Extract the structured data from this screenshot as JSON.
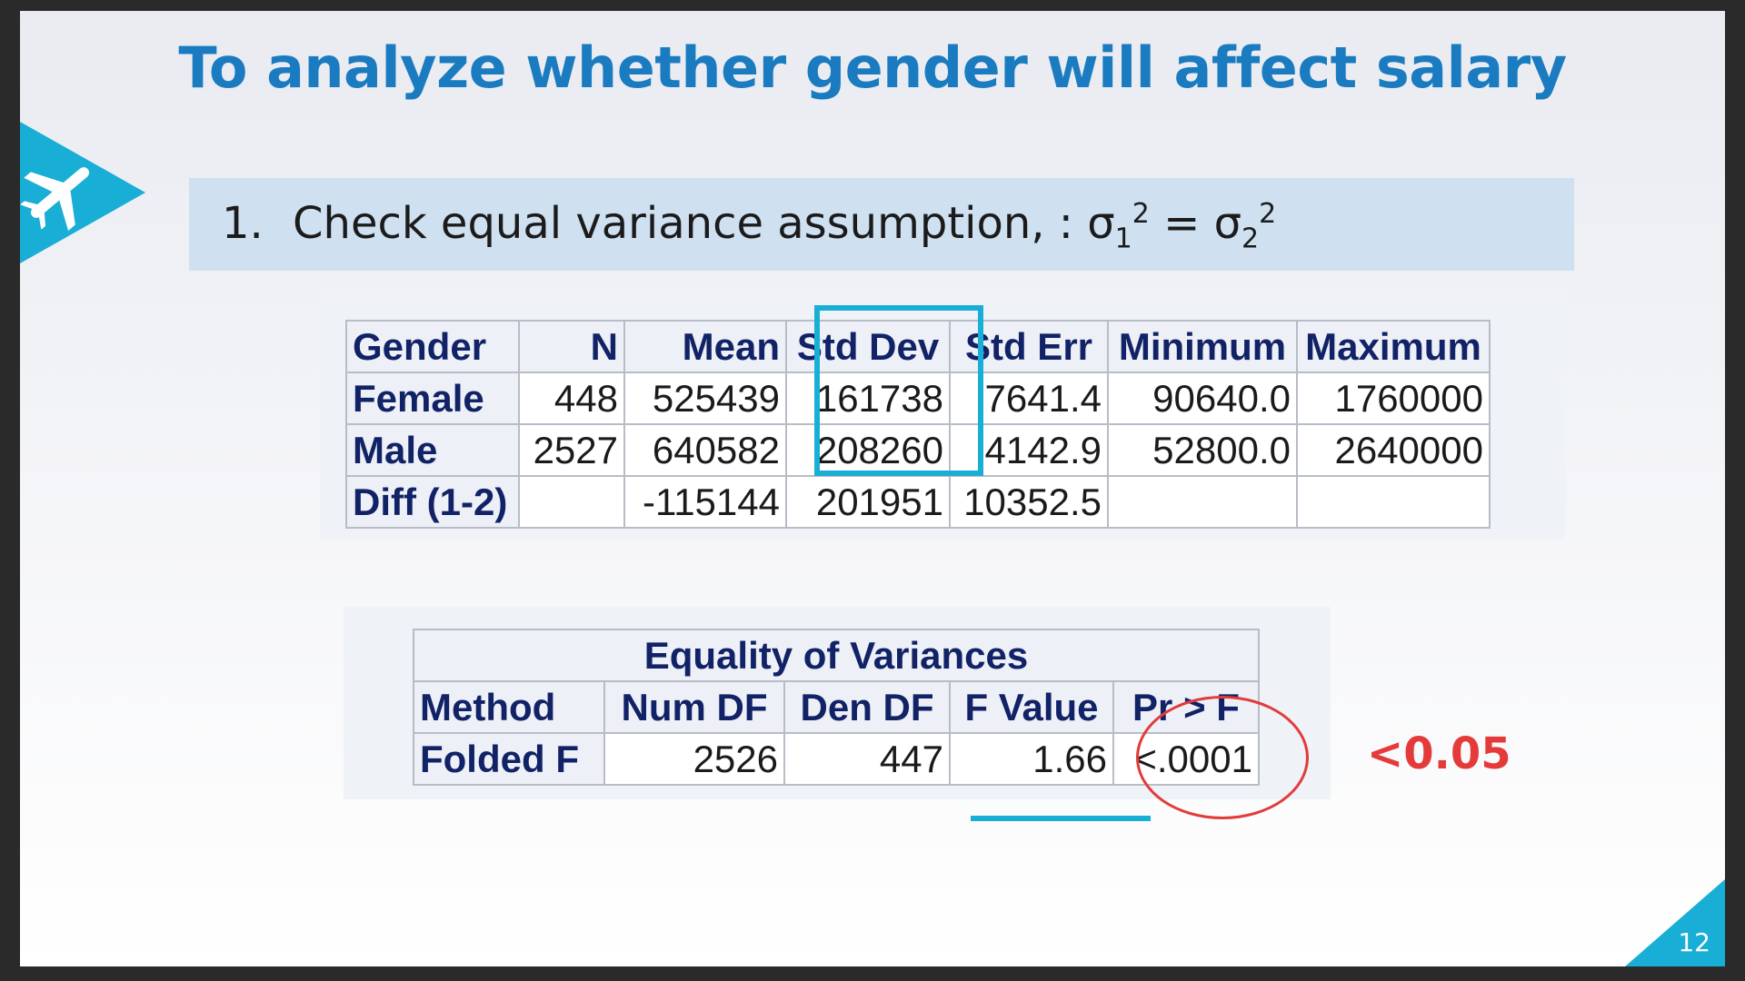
{
  "slide": {
    "title": "To analyze whether gender will affect salary",
    "page_number": "12",
    "accent_color": "#19aed6",
    "title_color": "#1a7bc0"
  },
  "banner": {
    "number": "1.",
    "text_prefix": "Check equal variance assumption, : σ",
    "sub1": "1",
    "sup1": "2",
    "equals": " = σ",
    "sub2": "2",
    "sup2": "2"
  },
  "stats_table": {
    "headers": [
      "Gender",
      "N",
      "Mean",
      "Std Dev",
      "Std Err",
      "Minimum",
      "Maximum"
    ],
    "rows": [
      [
        "Female",
        "448",
        "525439",
        "161738",
        "7641.4",
        "90640.0",
        "1760000"
      ],
      [
        "Male",
        "2527",
        "640582",
        "208260",
        "4142.9",
        "52800.0",
        "2640000"
      ],
      [
        "Diff (1-2)",
        "",
        "-115144",
        "201951",
        "10352.5",
        "",
        ""
      ]
    ]
  },
  "variance_table": {
    "caption": "Equality of Variances",
    "headers": [
      "Method",
      "Num DF",
      "Den DF",
      "F Value",
      "Pr > F"
    ],
    "rows": [
      [
        "Folded F",
        "2526",
        "447",
        "1.66",
        "<.0001"
      ]
    ]
  },
  "annotation": {
    "pvalue_note": "<0.05",
    "note_color": "#e53a3a"
  }
}
